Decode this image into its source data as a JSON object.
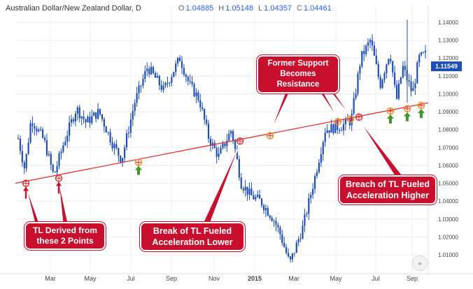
{
  "header": {
    "symbol": "Australian Dollar/New Zealand Dollar, D",
    "o_label": "O",
    "o_value": "1.04885",
    "h_label": "H",
    "h_value": "1.05148",
    "l_label": "L",
    "l_value": "1.04357",
    "c_label": "C",
    "c_value": "1.04461"
  },
  "last_price": "1.11549",
  "annotations": {
    "tl_derived": "TL Derived from these 2 Points",
    "break_lower": "Break of TL Fueled Acceleration Lower",
    "former_support": "Former Support Becomes Resistance",
    "breach_higher": "Breach of TL Fueled Acceleration Higher"
  },
  "fast_forward_icon": "fast-forward-icon",
  "colors": {
    "candles": "#1f4fb4",
    "trendline": "#e03030",
    "callout": "#c8102e",
    "up_arrow": "#3d9a2a",
    "down_arrow": "#c8102e",
    "circle": "#ff8c1a"
  },
  "chart_data": {
    "type": "candlestick",
    "title": "Australian Dollar/New Zealand Dollar, D",
    "ylim": [
      1.003,
      1.1445
    ],
    "y_ticks": [
      "1.14000",
      "1.13000",
      "1.12000",
      "1.11000",
      "1.10000",
      "1.09000",
      "1.08000",
      "1.07000",
      "1.06000",
      "1.05000",
      "1.04000",
      "1.03000",
      "1.02000",
      "1.01000"
    ],
    "x_ticks": [
      "Mar",
      "May",
      "Jul",
      "Sep",
      "Nov",
      "2015",
      "Mar",
      "May",
      "Jul",
      "Sep"
    ],
    "close_profile": [
      [
        0,
        1.075
      ],
      [
        0.02,
        1.058
      ],
      [
        0.04,
        1.086
      ],
      [
        0.08,
        1.074
      ],
      [
        0.11,
        1.054
      ],
      [
        0.14,
        1.072
      ],
      [
        0.18,
        1.092
      ],
      [
        0.21,
        1.084
      ],
      [
        0.25,
        1.09
      ],
      [
        0.29,
        1.073
      ],
      [
        0.32,
        1.063
      ],
      [
        0.36,
        1.095
      ],
      [
        0.4,
        1.115
      ],
      [
        0.42,
        1.11
      ],
      [
        0.45,
        1.102
      ],
      [
        0.5,
        1.12
      ],
      [
        0.53,
        1.105
      ],
      [
        0.56,
        1.097
      ],
      [
        0.59,
        1.075
      ],
      [
        0.62,
        1.065
      ],
      [
        0.66,
        1.08
      ],
      [
        0.69,
        1.05
      ],
      [
        0.72,
        1.043
      ],
      [
        0.75,
        1.04
      ],
      [
        0.79,
        1.03
      ],
      [
        0.81,
        1.022
      ],
      [
        0.84,
        1.005
      ],
      [
        0.88,
        1.025
      ],
      [
        0.92,
        1.055
      ],
      [
        0.95,
        1.08
      ],
      [
        1.0,
        1.082
      ],
      [
        1.03,
        1.085
      ],
      [
        1.06,
        1.12
      ],
      [
        1.09,
        1.13
      ],
      [
        1.12,
        1.105
      ],
      [
        1.15,
        1.124
      ],
      [
        1.17,
        1.096
      ],
      [
        1.19,
        1.115
      ],
      [
        1.22,
        1.1
      ],
      [
        1.24,
        1.12
      ],
      [
        1.26,
        1.122
      ]
    ],
    "trendline": {
      "start": {
        "date": "Jan 2014",
        "y": 1.05
      },
      "end": {
        "date": "Sep 2015",
        "y": 1.095
      }
    },
    "touch_points": [
      {
        "y": 1.05,
        "type": "down"
      },
      {
        "y": 1.0528,
        "type": "down"
      },
      {
        "y": 1.0617,
        "type": "up"
      },
      {
        "y": 1.0736,
        "type": "none"
      },
      {
        "y": 1.0766,
        "type": "none"
      },
      {
        "y": 1.0845,
        "type": "none"
      },
      {
        "y": 1.0859,
        "type": "none"
      },
      {
        "y": 1.087,
        "type": "none"
      },
      {
        "y": 1.0904,
        "type": "up"
      },
      {
        "y": 1.0917,
        "type": "up"
      },
      {
        "y": 1.0935,
        "type": "up"
      }
    ]
  }
}
